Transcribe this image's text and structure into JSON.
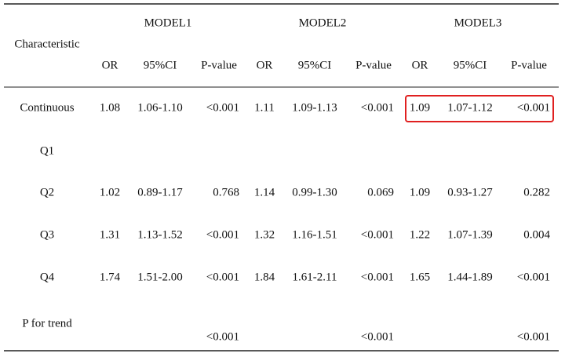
{
  "header": {
    "characteristic": "Characteristic",
    "models": [
      "MODEL1",
      "MODEL2",
      "MODEL3"
    ],
    "columns": [
      "OR",
      "95%CI",
      "P-value",
      "OR",
      "95%CI",
      "P-value",
      "OR",
      "95%CI",
      "P-value"
    ]
  },
  "rows": [
    {
      "label": "Continuous",
      "cells": [
        "1.08",
        "1.06-1.10",
        "<0.001",
        "1.11",
        "1.09-1.13",
        "<0.001",
        "1.09",
        "1.07-1.12",
        "<0.001"
      ]
    },
    {
      "label": "Q1"
    },
    {
      "label": "Q2",
      "cells": [
        "1.02",
        "0.89-1.17",
        "0.768",
        "1.14",
        "0.99-1.30",
        "0.069",
        "1.09",
        "0.93-1.27",
        "0.282"
      ]
    },
    {
      "label": "Q3",
      "cells": [
        "1.31",
        "1.13-1.52",
        "<0.001",
        "1.32",
        "1.16-1.51",
        "<0.001",
        "1.22",
        "1.07-1.39",
        "0.004"
      ]
    },
    {
      "label": "Q4",
      "cells": [
        "1.74",
        "1.51-2.00",
        "<0.001",
        "1.84",
        "1.61-2.11",
        "<0.001",
        "1.65",
        "1.44-1.89",
        "<0.001"
      ]
    },
    {
      "label": "P for trend",
      "cells": [
        null,
        null,
        "<0.001",
        null,
        null,
        "<0.001",
        null,
        null,
        "<0.001"
      ]
    }
  ]
}
